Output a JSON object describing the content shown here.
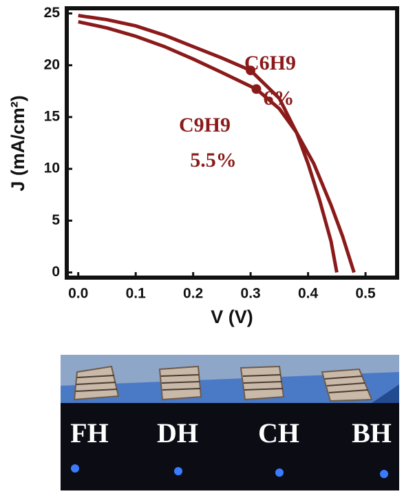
{
  "chart_data": {
    "type": "line",
    "x_label": "V (V)",
    "y_label": "J (mA/cm²)",
    "xlim": [
      -0.02,
      0.555
    ],
    "ylim": [
      -0.5,
      25.5
    ],
    "xticks": [
      {
        "value": 0,
        "label": "0.0"
      },
      0.1,
      0.2,
      0.3,
      0.4,
      0.5
    ],
    "yticks": [
      0,
      5,
      10,
      15,
      20,
      25
    ],
    "series": [
      {
        "name": "C6H9",
        "annotation": "6%",
        "color": "#8b1a1a",
        "x": [
          0,
          0.05,
          0.1,
          0.15,
          0.2,
          0.25,
          0.3,
          0.35,
          0.38,
          0.4,
          0.42,
          0.44,
          0.45
        ],
        "values": [
          24.8,
          24.4,
          23.8,
          22.9,
          21.8,
          20.7,
          19.5,
          16.8,
          13.5,
          10.5,
          7,
          3,
          0
        ],
        "highlight": {
          "x": 0.3,
          "y": 19.5
        }
      },
      {
        "name": "C9H9",
        "annotation": "5.5%",
        "color": "#8b1a1a",
        "x": [
          0,
          0.05,
          0.1,
          0.15,
          0.2,
          0.25,
          0.31,
          0.35,
          0.38,
          0.41,
          0.44,
          0.46,
          0.48
        ],
        "values": [
          24.2,
          23.6,
          22.8,
          21.8,
          20.6,
          19.3,
          17.7,
          15.8,
          13.5,
          10.5,
          6.5,
          3.5,
          0
        ],
        "highlight": {
          "x": 0.31,
          "y": 17.7
        }
      }
    ]
  },
  "photo": {
    "labels": [
      "FH",
      "DH",
      "CH",
      "BH"
    ]
  }
}
